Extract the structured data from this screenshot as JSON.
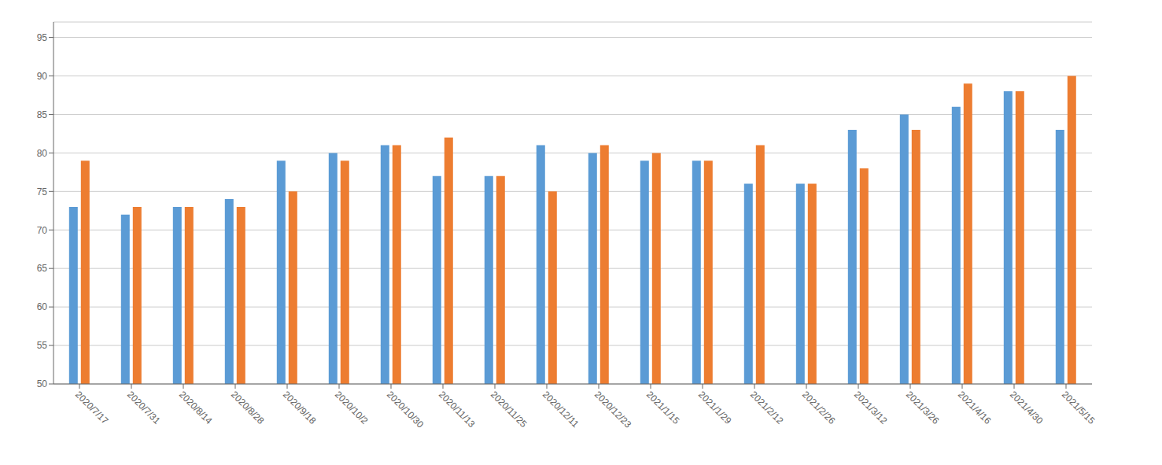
{
  "chart_data": {
    "type": "bar",
    "categories": [
      "2020/7/17",
      "2020/7/31",
      "2020/8/14",
      "2020/8/28",
      "2020/9/18",
      "2020/10/2",
      "2020/10/30",
      "2020/11/13",
      "2020/11/25",
      "2020/12/11",
      "2020/12/23",
      "2021/1/15",
      "2021/1/29",
      "2021/2/12",
      "2021/2/26",
      "2021/3/12",
      "2021/3/26",
      "2021/4/16",
      "2021/4/30",
      "2021/5/15"
    ],
    "series": [
      {
        "color": "#5B9BD5",
        "values": [
          73,
          72,
          73,
          74,
          79,
          80,
          81,
          77,
          77,
          81,
          80,
          79,
          79,
          76,
          76,
          83,
          85,
          86,
          88,
          83
        ]
      },
      {
        "color": "#ED7D31",
        "values": [
          79,
          73,
          73,
          73,
          75,
          79,
          81,
          82,
          77,
          75,
          81,
          80,
          79,
          81,
          76,
          78,
          83,
          89,
          88,
          90
        ]
      }
    ],
    "ylim": [
      50,
      97
    ],
    "yticks": [
      50,
      55,
      60,
      65,
      70,
      75,
      80,
      85,
      90,
      95
    ],
    "grid": true
  }
}
